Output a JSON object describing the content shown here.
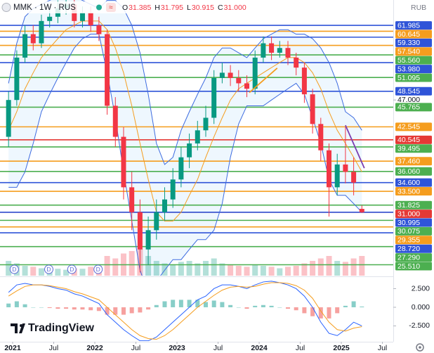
{
  "header": {
    "symbol": "MMK · 1W · RUS",
    "ohlc": [
      {
        "key": "O",
        "value": "31.385"
      },
      {
        "key": "H",
        "value": "31.795"
      },
      {
        "key": "L",
        "value": "30.915"
      },
      {
        "key": "C",
        "value": "31.000"
      }
    ],
    "currency": "RUB"
  },
  "watermark": "TradingView",
  "chart_data": {
    "type": "candlestick",
    "x": [
      2020.95,
      2021.05,
      2021.15,
      2021.25,
      2021.35,
      2021.45,
      2021.55,
      2021.65,
      2021.75,
      2021.85,
      2021.95,
      2022.05,
      2022.15,
      2022.25,
      2022.35,
      2022.45,
      2022.55,
      2022.65,
      2022.75,
      2022.85,
      2022.95,
      2023.05,
      2023.15,
      2023.25,
      2023.35,
      2023.45,
      2023.55,
      2023.65,
      2023.75,
      2023.85,
      2023.95,
      2024.05,
      2024.15,
      2024.25,
      2024.35,
      2024.45,
      2024.55,
      2024.65,
      2024.75,
      2024.85,
      2024.95,
      2025.05,
      2025.15,
      2025.25
    ],
    "open": [
      41,
      47,
      55,
      60,
      58,
      63,
      64,
      66,
      67,
      63,
      65,
      62,
      60,
      46,
      41,
      34,
      31,
      27,
      29,
      31,
      32.5,
      35,
      38,
      40,
      42,
      44,
      51,
      52,
      51,
      50,
      49,
      55,
      58,
      56,
      57,
      55,
      53,
      48,
      43,
      39,
      34,
      37,
      36,
      31.385
    ],
    "high": [
      48.5,
      56.5,
      62,
      62,
      64.5,
      66,
      68,
      69,
      68.5,
      66.5,
      66.5,
      64,
      61,
      47.5,
      42.5,
      36,
      32.5,
      30.5,
      32.5,
      34,
      36.5,
      39.5,
      41.5,
      43.5,
      46,
      52.5,
      54,
      53.5,
      52.5,
      51.5,
      56.5,
      59.5,
      59.5,
      58.5,
      58.5,
      56,
      54,
      49,
      44,
      40,
      38.5,
      42.5,
      38,
      31.795
    ],
    "low": [
      39.5,
      46,
      54,
      56.5,
      57,
      61.5,
      62.5,
      64.5,
      61.5,
      61.5,
      60.5,
      58.5,
      44.5,
      39.5,
      32.5,
      29,
      24.8,
      25.5,
      28,
      30,
      31.5,
      34,
      36.5,
      39,
      41,
      43,
      50,
      49.5,
      48.5,
      47.5,
      48,
      54,
      54.5,
      55,
      53.5,
      51.5,
      46.5,
      41.5,
      37.5,
      30.5,
      33,
      34.5,
      33,
      30.915
    ],
    "close": [
      47,
      55,
      60,
      58,
      63,
      64,
      66,
      67,
      63,
      65,
      62,
      60,
      46,
      41,
      34,
      31,
      27,
      29,
      31,
      32.5,
      35,
      38,
      40,
      42,
      44,
      51,
      52,
      51,
      50,
      49,
      55,
      58,
      56,
      57,
      55,
      53,
      48,
      43,
      39,
      34,
      37,
      36,
      34.6,
      31
    ],
    "up_color": "#089981",
    "down_color": "#f23645",
    "log_scale": true,
    "ylim": [
      24.5,
      68.1
    ],
    "yticks": [
      {
        "value": 47,
        "label": "47.000"
      }
    ],
    "xlim": [
      2020.846,
      2025.632
    ],
    "xticks": [
      {
        "value": 2021,
        "label": "2021"
      },
      {
        "value": 2021.5,
        "label": "Jul"
      },
      {
        "value": 2022,
        "label": "2022"
      },
      {
        "value": 2022.5,
        "label": "Jul"
      },
      {
        "value": 2023,
        "label": "2023"
      },
      {
        "value": 2023.5,
        "label": "Jul"
      },
      {
        "value": 2024,
        "label": "2024"
      },
      {
        "value": 2024.5,
        "label": "Jul"
      },
      {
        "value": 2025,
        "label": "2025"
      },
      {
        "value": 2025.5,
        "label": "Jul"
      }
    ],
    "levels": [
      {
        "value": 61.985,
        "label": "61.985",
        "color": "#2f54d8"
      },
      {
        "value": 60.645,
        "label": "60.645",
        "color": "#f59d1e"
      },
      {
        "value": 59.33,
        "label": "59.330",
        "color": "#2f54d8"
      },
      {
        "value": 57.54,
        "label": "57.540",
        "color": "#f59d1e"
      },
      {
        "value": 55.56,
        "label": "55.560",
        "color": "#4caf50"
      },
      {
        "value": 53.98,
        "label": "53.980",
        "color": "#2f54d8"
      },
      {
        "value": 51.095,
        "label": "51.095",
        "color": "#4caf50"
      },
      {
        "value": 48.545,
        "label": "48.545",
        "color": "#2f54d8"
      },
      {
        "value": 45.765,
        "label": "45.765",
        "color": "#4caf50"
      },
      {
        "value": 42.545,
        "label": "42.545",
        "color": "#f59d1e"
      },
      {
        "value": 40.545,
        "label": "40.545",
        "color": "#e53935"
      },
      {
        "value": 39.495,
        "label": "39.495",
        "color": "#4caf50"
      },
      {
        "value": 37.46,
        "label": "37.460",
        "color": "#f59d1e"
      },
      {
        "value": 36.06,
        "label": "36.060",
        "color": "#4caf50"
      },
      {
        "value": 34.6,
        "label": "34.600",
        "color": "#2f54d8"
      },
      {
        "value": 33.5,
        "label": "33.500",
        "color": "#f59d1e"
      },
      {
        "value": 31.825,
        "label": "31.825",
        "color": "#4caf50"
      },
      {
        "value": 31,
        "label": "31.000",
        "color": "#e53935"
      },
      {
        "value": 30.995,
        "label": "30.995",
        "color": "#2f54d8"
      },
      {
        "value": 30.075,
        "label": "30.075",
        "color": "#4caf50"
      },
      {
        "value": 29.355,
        "label": "29.355",
        "color": "#f59d1e"
      },
      {
        "value": 28.72,
        "label": "28.720",
        "color": "#2f54d8"
      },
      {
        "value": 27.29,
        "label": "27.290",
        "color": "#4caf50"
      },
      {
        "value": 25.51,
        "label": "25.510",
        "color": "#4caf50"
      }
    ],
    "bollinger": {
      "color": "#3d6be0",
      "upper": [
        50,
        58,
        64,
        66,
        67,
        68,
        69,
        70,
        69,
        68,
        67,
        66,
        68,
        68,
        66,
        62,
        56,
        48,
        40,
        37,
        38,
        42,
        45,
        48,
        51,
        55,
        57,
        57,
        56,
        55,
        57,
        59,
        60,
        61,
        61,
        60,
        60,
        59,
        57,
        54,
        50,
        45,
        44,
        42
      ],
      "lower": [
        34,
        34,
        36,
        40,
        45,
        48,
        51,
        54,
        57,
        59,
        60,
        60,
        52,
        44,
        36,
        30,
        25,
        23,
        24,
        25,
        26,
        26,
        27,
        28,
        28,
        29,
        32,
        38,
        43,
        46,
        46,
        46,
        47,
        48,
        49,
        50,
        48,
        44,
        40,
        35,
        33,
        33,
        32,
        31
      ]
    },
    "ma": {
      "color": "#f59d1e",
      "values": [
        42,
        45,
        49,
        52,
        55,
        57,
        59,
        61,
        62,
        63,
        63,
        63,
        61,
        57,
        52,
        46,
        40,
        35,
        31,
        30,
        30,
        31,
        33,
        35,
        38,
        41,
        44,
        47,
        49,
        50,
        51,
        52,
        53,
        54,
        55,
        55,
        54,
        52,
        49,
        45,
        42,
        40,
        38,
        36
      ]
    },
    "trendlines": [
      {
        "x": [
          2025.05,
          2025.28
        ],
        "y": [
          42.8,
          36.5
        ],
        "color": "#7b3fb0"
      },
      {
        "x": [
          2023.88,
          2024.22
        ],
        "y": [
          48.3,
          52.9
        ],
        "color": "#f59d1e"
      }
    ],
    "volume": {
      "vlim": [
        0,
        100
      ],
      "values": [
        30,
        25,
        20,
        18,
        15,
        15,
        14,
        12,
        15,
        14,
        18,
        20,
        40,
        35,
        45,
        50,
        55,
        40,
        30,
        25,
        22,
        28,
        30,
        25,
        30,
        35,
        25,
        22,
        20,
        18,
        22,
        20,
        18,
        15,
        18,
        20,
        25,
        30,
        35,
        40,
        30,
        28,
        35,
        40
      ]
    },
    "dividends": {
      "x": [
        2021.02,
        2021.44,
        2021.72,
        2022.04
      ],
      "label": "D"
    },
    "macd": {
      "ylim": [
        -4.06,
        3.96
      ],
      "yticks": [
        {
          "value": 2.5,
          "label": "2.500"
        },
        {
          "value": 0,
          "label": "0.000"
        },
        {
          "value": -2.5,
          "label": "-2.500"
        }
      ],
      "macd_color": "#2962ff",
      "signal_color": "#f59d1e",
      "up_color": "#26a69a",
      "down_color": "#ef5350",
      "macd": [
        2,
        3,
        3.2,
        3,
        3,
        2.8,
        2.5,
        2.3,
        1.8,
        1.5,
        1,
        0.5,
        -1,
        -2,
        -3,
        -3.8,
        -4.5,
        -4.5,
        -4,
        -3,
        -2,
        -1,
        0,
        1,
        1.5,
        2.5,
        3,
        3,
        2.8,
        2.5,
        3,
        3.4,
        3.5,
        3.3,
        3,
        2.5,
        1.5,
        0,
        -2,
        -3.5,
        -3.8,
        -3,
        -2,
        -2.5
      ],
      "signal": [
        1.5,
        2.2,
        2.8,
        3,
        3,
        2.9,
        2.7,
        2.5,
        2.1,
        1.8,
        1.4,
        1,
        0,
        -1,
        -2,
        -3,
        -3.8,
        -4.2,
        -4.3,
        -3.8,
        -3,
        -2,
        -1,
        0,
        0.8,
        1.6,
        2.3,
        2.7,
        2.8,
        2.7,
        2.8,
        3.1,
        3.3,
        3.3,
        3.2,
        2.9,
        2.3,
        1.2,
        -0.5,
        -2,
        -3,
        -3.2,
        -2.8,
        -2.6
      ],
      "histogram": [
        0.5,
        0.8,
        0.4,
        0,
        0,
        -0.1,
        -0.2,
        -0.2,
        -0.3,
        -0.3,
        -0.4,
        -0.5,
        -1,
        -1,
        -1,
        -0.8,
        -0.7,
        -0.3,
        0.3,
        0.8,
        1,
        1,
        1,
        1,
        0.7,
        0.9,
        0.7,
        0.3,
        0,
        -0.2,
        0.2,
        0.3,
        0.2,
        0,
        -0.2,
        -0.4,
        -0.8,
        -1.2,
        -1.5,
        -1.5,
        -0.8,
        0.2,
        0.8,
        0.1
      ]
    }
  }
}
